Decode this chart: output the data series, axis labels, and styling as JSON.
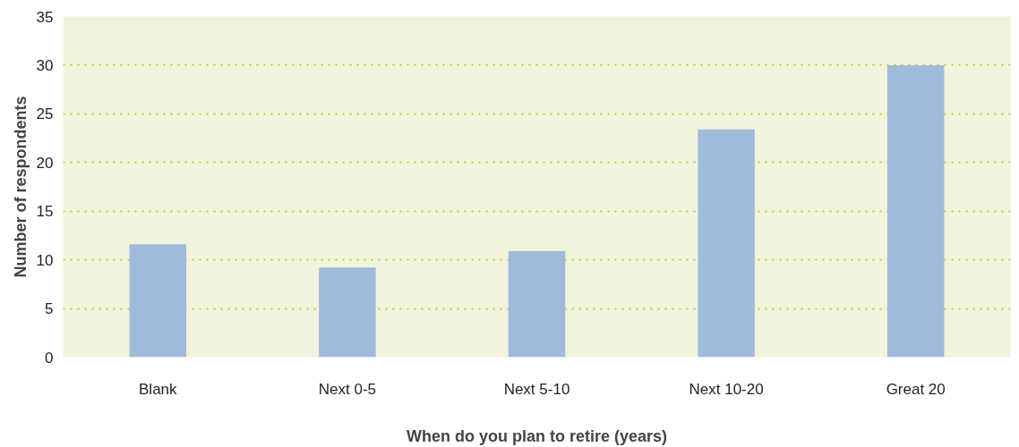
{
  "chart_data": {
    "type": "bar",
    "xlabel": "When do you plan to retire (years)",
    "ylabel": "Number of respondents",
    "categories": [
      "Blank",
      "Next 0-5",
      "Next 5-10",
      "Next 10-20",
      "Great 20"
    ],
    "values": [
      11.6,
      9.2,
      10.9,
      23.4,
      30
    ],
    "color": "#9fbadb",
    "ylim": [
      0,
      35
    ],
    "yticks": [
      0,
      5,
      10,
      15,
      20,
      25,
      30,
      35
    ],
    "grid": "y",
    "line_style": "dotted"
  }
}
